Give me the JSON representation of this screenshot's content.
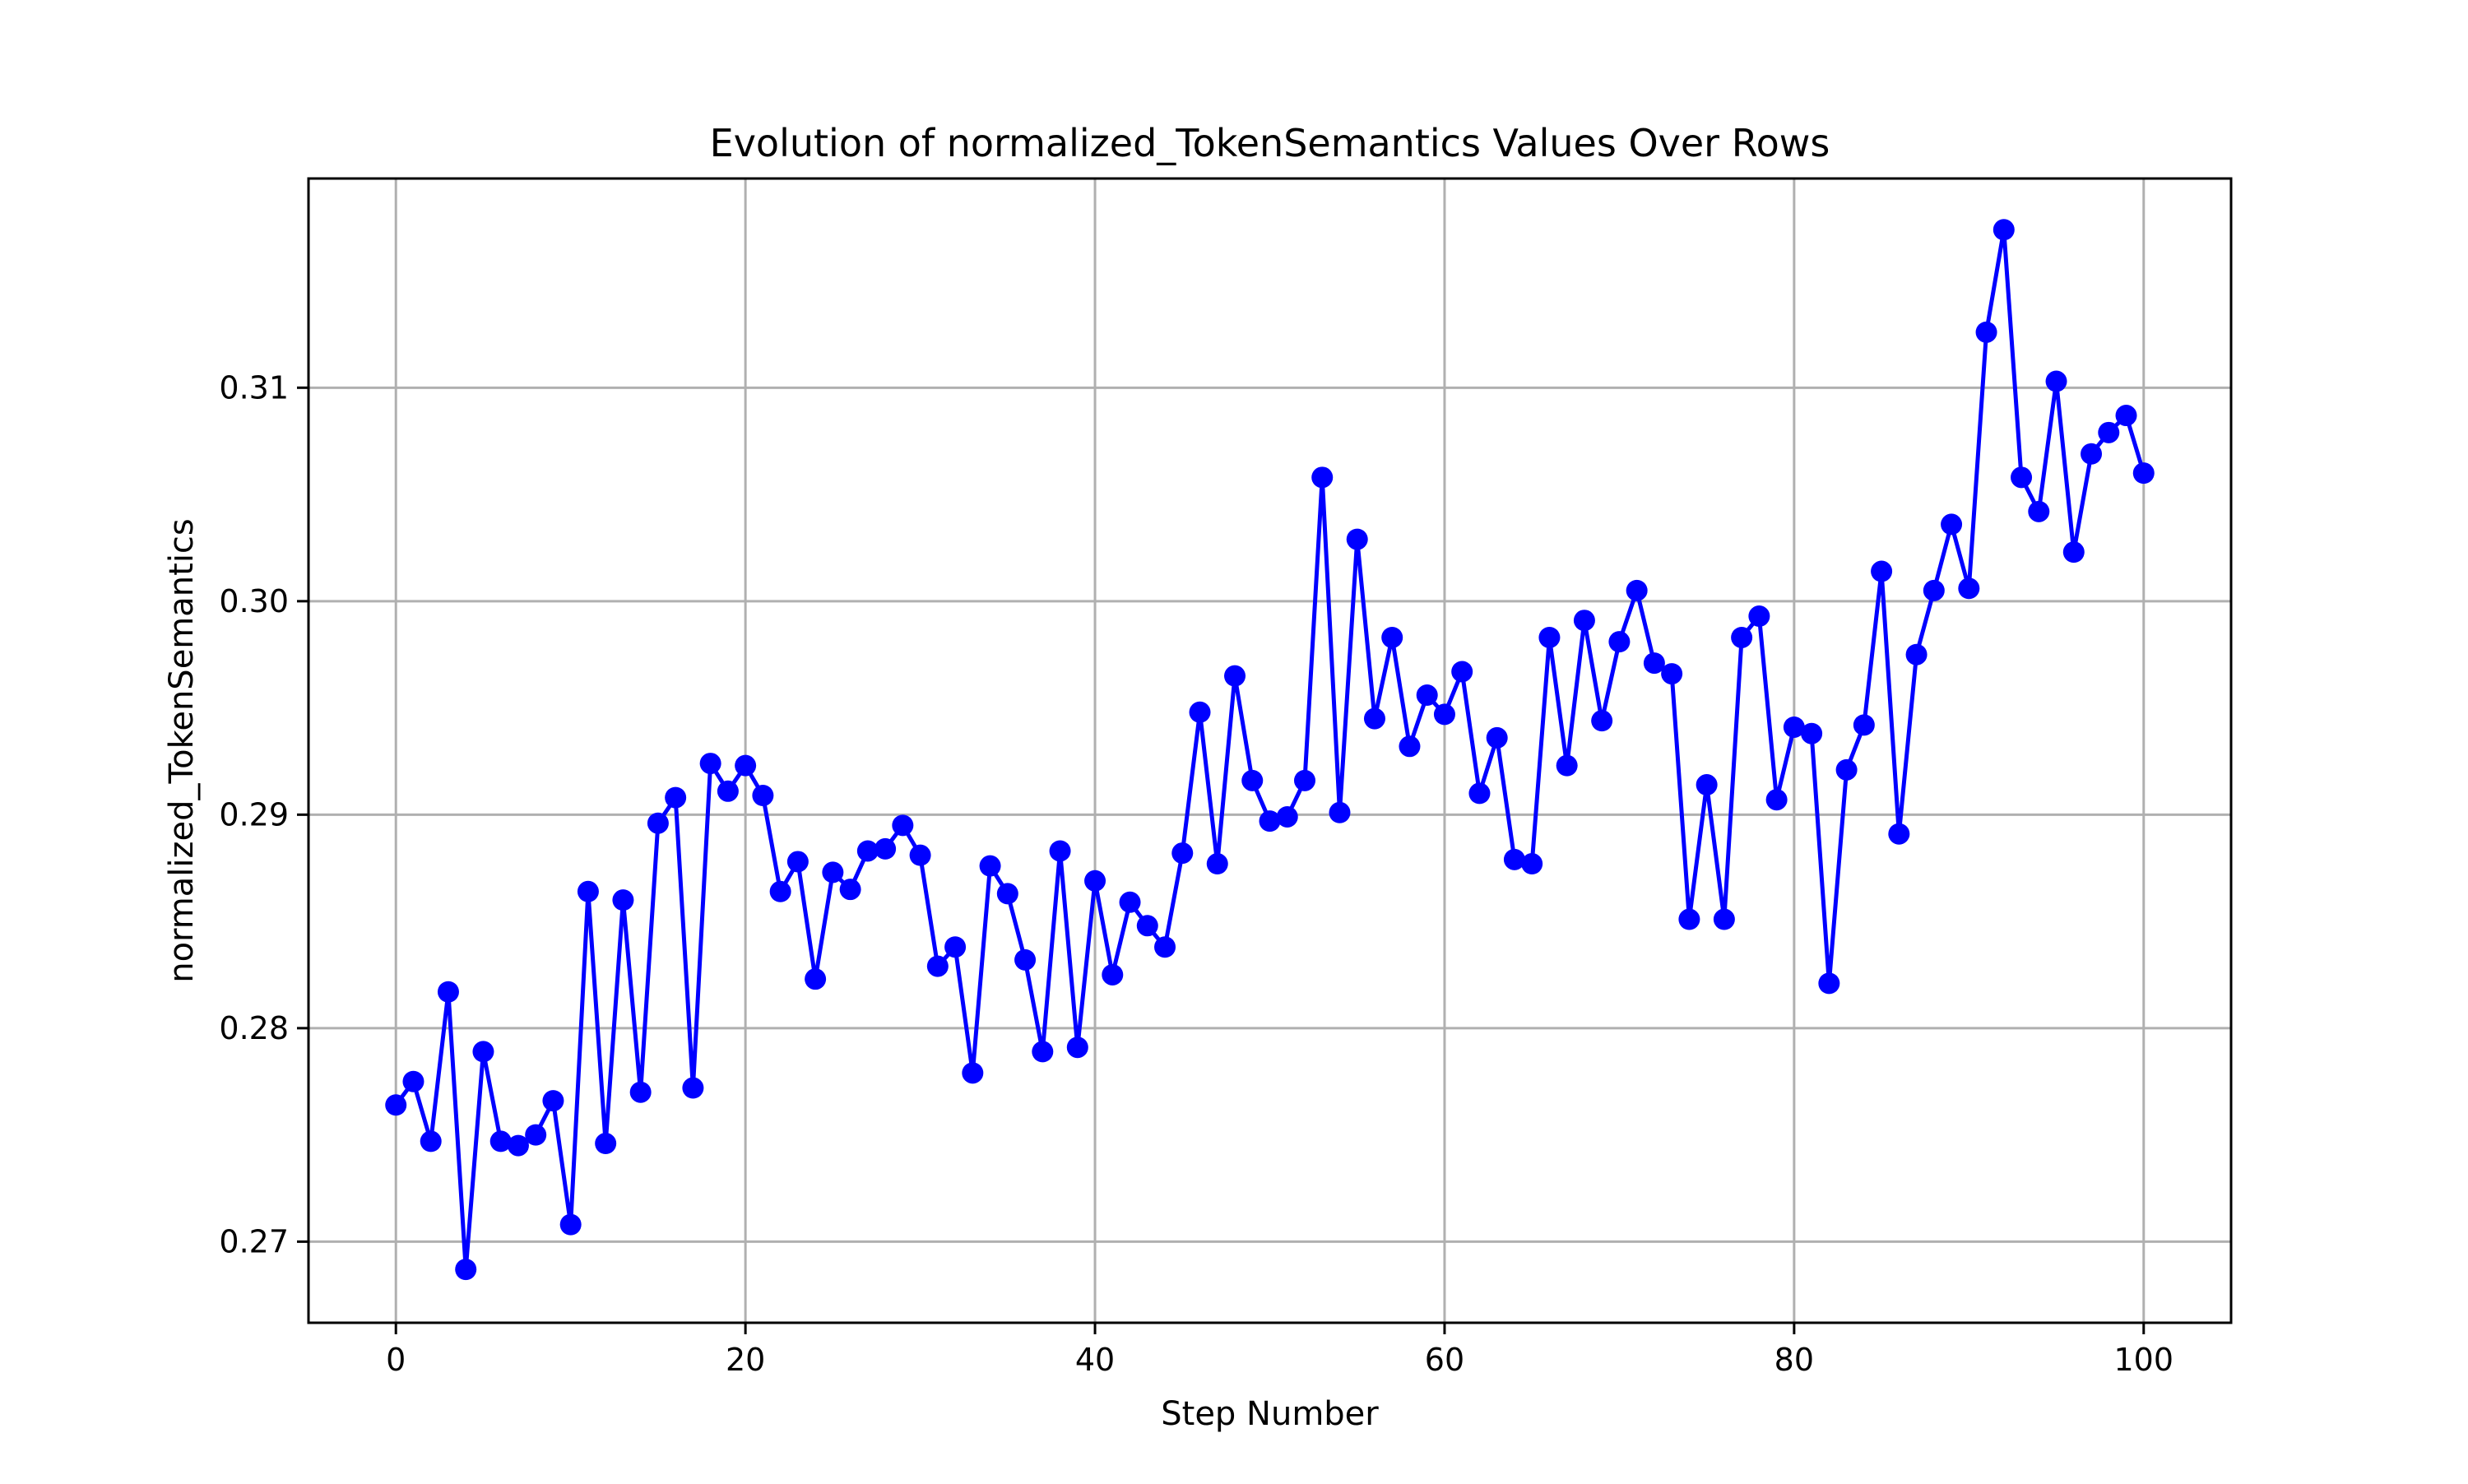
{
  "chart_data": {
    "type": "line",
    "title": "Evolution of normalized_TokenSemantics Values Over Rows",
    "xlabel": "Step Number",
    "ylabel": "normalized_TokenSemantics",
    "xlim": [
      -5,
      105
    ],
    "ylim": [
      0.2662,
      0.3198
    ],
    "xticks": [
      0,
      20,
      40,
      60,
      80,
      100
    ],
    "xtick_labels": [
      "0",
      "20",
      "40",
      "60",
      "80",
      "100"
    ],
    "yticks": [
      0.27,
      0.28,
      0.29,
      0.3,
      0.31
    ],
    "ytick_labels": [
      "0.27",
      "0.28",
      "0.29",
      "0.30",
      "0.31"
    ],
    "grid": true,
    "line_color": "#0000ff",
    "series": [
      {
        "x": [
          0,
          1,
          2,
          3,
          4,
          5,
          6,
          7,
          8,
          9,
          10,
          11,
          12,
          13,
          14,
          15,
          16,
          17,
          18,
          19,
          20,
          21,
          22,
          23,
          24,
          25,
          26,
          27,
          28,
          29,
          30,
          31,
          32,
          33,
          34,
          35,
          36,
          37,
          38,
          39,
          40,
          41,
          42,
          43,
          44,
          45,
          46,
          47,
          48,
          49,
          50,
          51,
          52,
          53,
          54,
          55,
          56,
          57,
          58,
          59,
          60,
          61,
          62,
          63,
          64,
          65,
          66,
          67,
          68,
          69,
          70,
          71,
          72,
          73,
          74,
          75,
          76,
          77,
          78,
          79,
          80,
          81,
          82,
          83,
          84,
          85,
          86,
          87,
          88,
          89,
          90,
          91,
          92,
          93,
          94,
          95,
          96,
          97,
          98,
          99,
          100
        ],
        "values": [
          0.2764,
          0.2775,
          0.2747,
          0.2817,
          0.2687,
          0.2789,
          0.2747,
          0.2745,
          0.275,
          0.2766,
          0.2708,
          0.2864,
          0.2746,
          0.286,
          0.277,
          0.2896,
          0.2908,
          0.2772,
          0.2924,
          0.2911,
          0.2923,
          0.2909,
          0.2864,
          0.2878,
          0.2823,
          0.2873,
          0.2865,
          0.2883,
          0.2884,
          0.2895,
          0.2881,
          0.2829,
          0.2838,
          0.2779,
          0.2876,
          0.2863,
          0.2832,
          0.2789,
          0.2883,
          0.2791,
          0.2869,
          0.2825,
          0.2859,
          0.2848,
          0.2838,
          0.2882,
          0.2948,
          0.2877,
          0.2965,
          0.2916,
          0.2897,
          0.2899,
          0.2916,
          0.3058,
          0.2901,
          0.3029,
          0.2945,
          0.2983,
          0.2932,
          0.2956,
          0.2947,
          0.2967,
          0.291,
          0.2936,
          0.2879,
          0.2877,
          0.2983,
          0.2923,
          0.2991,
          0.2944,
          0.2981,
          0.3005,
          0.2971,
          0.2966,
          0.2851,
          0.2914,
          0.2851,
          0.2983,
          0.2993,
          0.2907,
          0.2941,
          0.2938,
          0.2821,
          0.2921,
          0.2942,
          0.3014,
          0.2891,
          0.2975,
          0.3005,
          0.3036,
          0.3006,
          0.3126,
          0.3174,
          0.3058,
          0.3042,
          0.3103,
          0.3023,
          0.3069,
          0.3079,
          0.3087,
          0.306
        ]
      }
    ]
  }
}
